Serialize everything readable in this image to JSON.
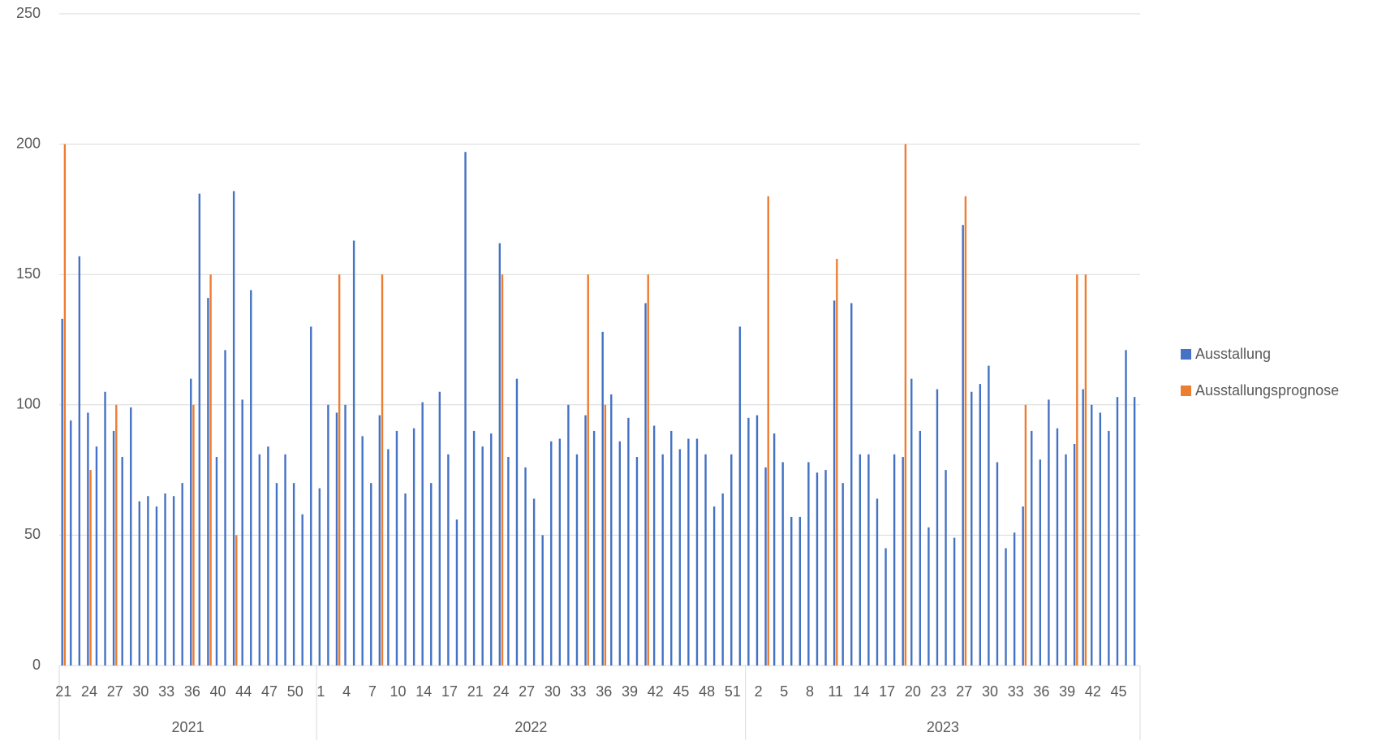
{
  "chart_data": {
    "type": "bar",
    "categories": [
      "21",
      null,
      null,
      "24",
      null,
      null,
      "27",
      null,
      null,
      "30",
      null,
      null,
      "33",
      null,
      null,
      "36",
      null,
      null,
      "40",
      null,
      null,
      "44",
      null,
      null,
      "47",
      null,
      null,
      "50",
      null,
      null,
      "1",
      null,
      null,
      "4",
      null,
      null,
      "7",
      null,
      null,
      "10",
      null,
      null,
      "14",
      null,
      null,
      "17",
      null,
      null,
      "21",
      null,
      null,
      "24",
      null,
      null,
      "27",
      null,
      null,
      "30",
      null,
      null,
      "33",
      null,
      null,
      "36",
      null,
      null,
      "39",
      null,
      null,
      "42",
      null,
      null,
      "45",
      null,
      null,
      "48",
      null,
      null,
      "51",
      null,
      null,
      "2",
      null,
      null,
      "5",
      null,
      null,
      "8",
      null,
      null,
      "11",
      null,
      null,
      "14",
      null,
      null,
      "17",
      null,
      null,
      "20",
      null,
      null,
      "23",
      null,
      null,
      "27",
      null,
      null,
      "30",
      null,
      null,
      "33",
      null,
      null,
      "36",
      null,
      null,
      "39",
      null,
      null,
      "42",
      null,
      null,
      "45",
      null,
      null
    ],
    "group_labels": [
      "2021",
      "2022",
      "2023"
    ],
    "group_sizes": [
      30,
      50,
      46
    ],
    "series": [
      {
        "name": "Ausstallung",
        "color": "#4472c4",
        "values": [
          133,
          94,
          157,
          97,
          84,
          105,
          90,
          80,
          99,
          63,
          65,
          61,
          66,
          65,
          70,
          110,
          181,
          141,
          80,
          121,
          182,
          102,
          144,
          81,
          84,
          70,
          81,
          70,
          58,
          130,
          68,
          100,
          97,
          100,
          163,
          88,
          70,
          96,
          83,
          90,
          66,
          91,
          101,
          70,
          105,
          81,
          56,
          197,
          90,
          84,
          89,
          162,
          80,
          110,
          76,
          64,
          50,
          86,
          87,
          100,
          81,
          96,
          90,
          128,
          104,
          86,
          95,
          80,
          139,
          92,
          81,
          90,
          83,
          87,
          87,
          81,
          61,
          66,
          81,
          130,
          95,
          96,
          76,
          89,
          78,
          57,
          57,
          78,
          74,
          75,
          140,
          70,
          139,
          81,
          81,
          64,
          45,
          81,
          80,
          110,
          90,
          53,
          106,
          75,
          49,
          169,
          105,
          108,
          115,
          78,
          45,
          51,
          61,
          90,
          79,
          102,
          91,
          81,
          85,
          106,
          100,
          97,
          90,
          103,
          121,
          103
        ]
      },
      {
        "name": "Ausstallungsprognose",
        "color": "#ed7d31",
        "values": [
          200,
          null,
          null,
          75,
          null,
          null,
          100,
          null,
          null,
          null,
          null,
          null,
          null,
          null,
          null,
          100,
          null,
          150,
          null,
          null,
          50,
          null,
          null,
          null,
          null,
          null,
          null,
          null,
          null,
          null,
          null,
          null,
          150,
          null,
          null,
          null,
          null,
          150,
          null,
          null,
          null,
          null,
          null,
          null,
          null,
          null,
          null,
          null,
          null,
          null,
          null,
          150,
          null,
          null,
          null,
          null,
          null,
          null,
          null,
          null,
          null,
          150,
          null,
          100,
          null,
          null,
          null,
          null,
          150,
          null,
          null,
          null,
          null,
          null,
          null,
          null,
          null,
          null,
          null,
          null,
          null,
          null,
          180,
          null,
          null,
          null,
          null,
          null,
          null,
          null,
          156,
          null,
          null,
          null,
          null,
          null,
          null,
          null,
          200,
          null,
          null,
          null,
          null,
          null,
          null,
          180,
          null,
          null,
          null,
          null,
          null,
          null,
          100,
          null,
          null,
          null,
          null,
          null,
          150,
          150,
          null,
          null,
          null,
          null,
          null,
          null
        ]
      }
    ],
    "ylim": [
      0,
      250
    ],
    "yticks": [
      0,
      50,
      100,
      150,
      200,
      250
    ],
    "grid": true,
    "legend": "right"
  }
}
